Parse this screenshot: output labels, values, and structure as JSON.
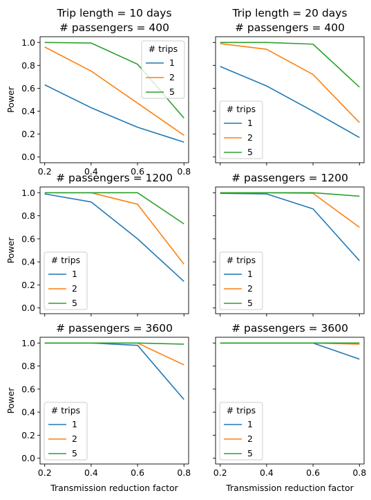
{
  "series_colors": {
    "1": "#1f77b4",
    "2": "#ff7f0e",
    "5": "#2ca02c"
  },
  "legend_title": "# trips",
  "chart_data": [
    {
      "type": "line",
      "title_lines": [
        "Trip length = 10 days",
        "# passengers = 400"
      ],
      "xlabel": "",
      "ylabel": "Power",
      "xlim": [
        0.18,
        0.82
      ],
      "ylim": [
        -0.05,
        1.05
      ],
      "xticks": [
        0.2,
        0.4,
        0.6,
        0.8
      ],
      "yticks": [
        0.0,
        0.2,
        0.4,
        0.6,
        0.8,
        1.0
      ],
      "xtick_labels": [
        "0.2",
        "0.4",
        "0.6",
        "0.8"
      ],
      "ytick_labels": [
        "0.0",
        "0.2",
        "0.4",
        "0.6",
        "0.8",
        "1.0"
      ],
      "legend_loc": "upper-right",
      "legend_title": "# trips",
      "x": [
        0.2,
        0.4,
        0.6,
        0.8
      ],
      "series": [
        {
          "name": "1",
          "values": [
            0.63,
            0.43,
            0.26,
            0.13
          ]
        },
        {
          "name": "2",
          "values": [
            0.96,
            0.75,
            0.47,
            0.19
          ]
        },
        {
          "name": "5",
          "values": [
            1.0,
            0.995,
            0.81,
            0.34
          ]
        }
      ]
    },
    {
      "type": "line",
      "title_lines": [
        "Trip length = 20 days",
        "# passengers = 400"
      ],
      "xlabel": "",
      "ylabel": "",
      "xlim": [
        0.18,
        0.82
      ],
      "ylim": [
        -0.05,
        1.05
      ],
      "xticks": [
        0.2,
        0.4,
        0.6,
        0.8
      ],
      "yticks": [
        0.0,
        0.2,
        0.4,
        0.6,
        0.8,
        1.0
      ],
      "xtick_labels": [
        "",
        "",
        "",
        ""
      ],
      "ytick_labels": [
        "",
        "",
        "",
        "",
        "",
        ""
      ],
      "legend_loc": "lower-left",
      "legend_title": "# trips",
      "x": [
        0.2,
        0.4,
        0.6,
        0.8
      ],
      "series": [
        {
          "name": "1",
          "values": [
            0.79,
            0.62,
            0.4,
            0.17
          ]
        },
        {
          "name": "2",
          "values": [
            0.99,
            0.94,
            0.72,
            0.3
          ]
        },
        {
          "name": "5",
          "values": [
            1.0,
            1.0,
            0.985,
            0.61
          ]
        }
      ]
    },
    {
      "type": "line",
      "title_lines": [
        "# passengers = 1200"
      ],
      "xlabel": "",
      "ylabel": "Power",
      "xlim": [
        0.18,
        0.82
      ],
      "ylim": [
        -0.05,
        1.05
      ],
      "xticks": [
        0.2,
        0.4,
        0.6,
        0.8
      ],
      "yticks": [
        0.0,
        0.2,
        0.4,
        0.6,
        0.8,
        1.0
      ],
      "xtick_labels": [
        "",
        "",
        "",
        ""
      ],
      "ytick_labels": [
        "0.0",
        "0.2",
        "0.4",
        "0.6",
        "0.8",
        "1.0"
      ],
      "legend_loc": "lower-left",
      "legend_title": "# trips",
      "x": [
        0.2,
        0.4,
        0.6,
        0.8
      ],
      "series": [
        {
          "name": "1",
          "values": [
            0.99,
            0.92,
            0.6,
            0.23
          ]
        },
        {
          "name": "2",
          "values": [
            1.0,
            1.0,
            0.9,
            0.38
          ]
        },
        {
          "name": "5",
          "values": [
            1.0,
            1.0,
            1.0,
            0.73
          ]
        }
      ]
    },
    {
      "type": "line",
      "title_lines": [
        "# passengers = 1200"
      ],
      "xlabel": "",
      "ylabel": "",
      "xlim": [
        0.18,
        0.82
      ],
      "ylim": [
        -0.05,
        1.05
      ],
      "xticks": [
        0.2,
        0.4,
        0.6,
        0.8
      ],
      "yticks": [
        0.0,
        0.2,
        0.4,
        0.6,
        0.8,
        1.0
      ],
      "xtick_labels": [
        "",
        "",
        "",
        ""
      ],
      "ytick_labels": [
        "",
        "",
        "",
        "",
        "",
        ""
      ],
      "legend_loc": "lower-left",
      "legend_title": "# trips",
      "x": [
        0.2,
        0.4,
        0.6,
        0.8
      ],
      "series": [
        {
          "name": "1",
          "values": [
            0.995,
            0.99,
            0.86,
            0.41
          ]
        },
        {
          "name": "2",
          "values": [
            1.0,
            1.0,
            0.995,
            0.7
          ]
        },
        {
          "name": "5",
          "values": [
            1.0,
            1.0,
            1.0,
            0.97
          ]
        }
      ]
    },
    {
      "type": "line",
      "title_lines": [
        "# passengers = 3600"
      ],
      "xlabel": "Transmission reduction factor",
      "ylabel": "Power",
      "xlim": [
        0.18,
        0.82
      ],
      "ylim": [
        -0.05,
        1.05
      ],
      "xticks": [
        0.2,
        0.4,
        0.6,
        0.8
      ],
      "yticks": [
        0.0,
        0.2,
        0.4,
        0.6,
        0.8,
        1.0
      ],
      "xtick_labels": [
        "0.2",
        "0.4",
        "0.6",
        "0.8"
      ],
      "ytick_labels": [
        "0.0",
        "0.2",
        "0.4",
        "0.6",
        "0.8",
        "1.0"
      ],
      "legend_loc": "lower-left",
      "legend_title": "# trips",
      "x": [
        0.2,
        0.4,
        0.6,
        0.8
      ],
      "series": [
        {
          "name": "1",
          "values": [
            1.0,
            1.0,
            0.98,
            0.51
          ]
        },
        {
          "name": "2",
          "values": [
            1.0,
            1.0,
            1.0,
            0.81
          ]
        },
        {
          "name": "5",
          "values": [
            1.0,
            1.0,
            1.0,
            0.99
          ]
        }
      ]
    },
    {
      "type": "line",
      "title_lines": [
        "# passengers = 3600"
      ],
      "xlabel": "Transmission reduction factor",
      "ylabel": "",
      "xlim": [
        0.18,
        0.82
      ],
      "ylim": [
        -0.05,
        1.05
      ],
      "xticks": [
        0.2,
        0.4,
        0.6,
        0.8
      ],
      "yticks": [
        0.0,
        0.2,
        0.4,
        0.6,
        0.8,
        1.0
      ],
      "xtick_labels": [
        "0.2",
        "0.4",
        "0.6",
        "0.8"
      ],
      "ytick_labels": [
        "",
        "",
        "",
        "",
        "",
        ""
      ],
      "legend_loc": "lower-left",
      "legend_title": "# trips",
      "x": [
        0.2,
        0.4,
        0.6,
        0.8
      ],
      "series": [
        {
          "name": "1",
          "values": [
            1.0,
            1.0,
            1.0,
            0.86
          ]
        },
        {
          "name": "2",
          "values": [
            1.0,
            1.0,
            1.0,
            0.99
          ]
        },
        {
          "name": "5",
          "values": [
            1.0,
            1.0,
            1.0,
            1.0
          ]
        }
      ]
    }
  ]
}
